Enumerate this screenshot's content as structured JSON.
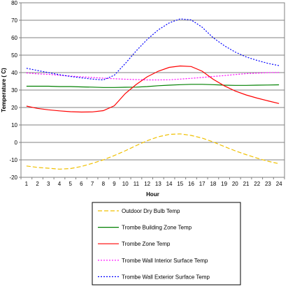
{
  "chart_data": {
    "type": "line",
    "xlabel": "Hour",
    "ylabel": "Temperature ( C)",
    "ylim": [
      -20,
      80
    ],
    "yticks": [
      -20,
      -10,
      0,
      10,
      20,
      30,
      40,
      50,
      60,
      70,
      80
    ],
    "grid": "horizontal",
    "legend": "bottom",
    "x": [
      1,
      2,
      3,
      4,
      5,
      6,
      7,
      8,
      9,
      10,
      11,
      12,
      13,
      14,
      15,
      16,
      17,
      18,
      19,
      20,
      21,
      22,
      23,
      24
    ],
    "series": [
      {
        "name": "Outdoor Dry Bulb Temp",
        "color": "#f0c000",
        "dash": "dashed",
        "values": [
          -13.5,
          -14.3,
          -14.8,
          -15.3,
          -15.0,
          -13.8,
          -12.0,
          -10.0,
          -7.5,
          -4.8,
          -1.8,
          1.0,
          3.2,
          4.6,
          4.9,
          4.0,
          2.5,
          0.3,
          -2.3,
          -4.8,
          -7.0,
          -9.0,
          -10.8,
          -12.2
        ]
      },
      {
        "name": "Trombe Building Zone Temp",
        "color": "#008000",
        "dash": "solid",
        "values": [
          32.2,
          32.2,
          32.2,
          32.0,
          32.0,
          31.8,
          31.7,
          31.5,
          31.5,
          31.6,
          31.7,
          32.0,
          32.5,
          32.8,
          33.1,
          33.3,
          33.3,
          33.1,
          32.8,
          32.7,
          32.7,
          32.8,
          32.9,
          33.0
        ]
      },
      {
        "name": "Trombe Zone Temp",
        "color": "#ff0000",
        "dash": "solid",
        "values": [
          20.8,
          19.5,
          18.7,
          18.1,
          17.6,
          17.4,
          17.5,
          18.2,
          21.0,
          28.0,
          33.2,
          37.6,
          40.8,
          43.0,
          43.8,
          43.5,
          40.8,
          36.2,
          32.5,
          29.5,
          27.2,
          25.4,
          23.8,
          22.3
        ]
      },
      {
        "name": "Trombe Wall Interior Surface Temp",
        "color": "#ff00ff",
        "dash": "dotted",
        "values": [
          39.8,
          39.3,
          39.0,
          38.5,
          38.0,
          37.6,
          37.2,
          36.8,
          36.5,
          36.2,
          36.0,
          35.8,
          35.8,
          35.9,
          36.3,
          36.7,
          37.2,
          37.8,
          38.3,
          38.9,
          39.4,
          39.7,
          40.0,
          40.1
        ]
      },
      {
        "name": "Trombe Wall Exterior Surface Temp",
        "color": "#0000ff",
        "dash": "dotted",
        "values": [
          42.5,
          41.2,
          40.0,
          38.8,
          37.8,
          37.0,
          36.3,
          35.8,
          38.5,
          45.2,
          52.5,
          59.0,
          64.5,
          68.5,
          70.8,
          70.2,
          66.0,
          60.0,
          55.5,
          51.8,
          49.0,
          47.0,
          45.3,
          44.0
        ]
      }
    ]
  }
}
